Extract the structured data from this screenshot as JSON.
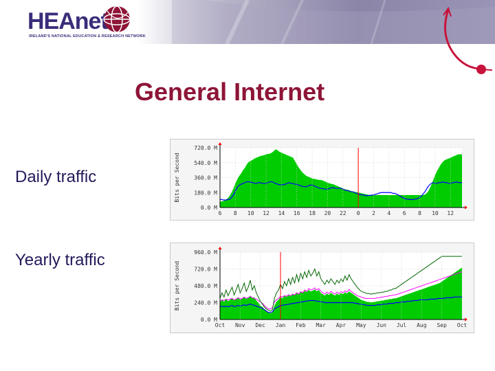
{
  "header": {
    "logo_text": "HEAnet",
    "logo_tagline": "IRELAND'S NATIONAL EDUCATION & RESEARCH NETWORK"
  },
  "slide": {
    "title": "General Internet",
    "labels": {
      "daily": "Daily traffic",
      "yearly": "Yearly traffic"
    }
  },
  "colors": {
    "title": "#8e1537",
    "label": "#221a5a",
    "in_area": "#00cc00",
    "out_line": "#0000ff",
    "marker": "#ff0000",
    "max_in": "#006600",
    "max_out": "#ff00ff"
  },
  "chart_data": [
    {
      "type": "area",
      "ylabel": "Bits per Second",
      "ytick_labels": [
        "720.0 M",
        "540.0 M",
        "360.0 M",
        "180.0 M",
        "0.0 M"
      ],
      "yticks": [
        720,
        540,
        360,
        180,
        0
      ],
      "ylim": [
        0,
        720
      ],
      "xtick_labels": [
        "6",
        "8",
        "10",
        "12",
        "14",
        "16",
        "18",
        "20",
        "22",
        "0",
        "2",
        "4",
        "6",
        "8",
        "10",
        "12"
      ],
      "xtick_index": [
        0,
        8,
        16,
        24,
        32,
        40,
        48,
        56,
        64,
        72,
        80,
        88,
        96,
        104,
        112,
        120
      ],
      "marker_index": 72,
      "grid": true,
      "series": [
        {
          "values": [
            70,
            75,
            80,
            95,
            110,
            140,
            180,
            230,
            290,
            340,
            380,
            410,
            450,
            480,
            520,
            550,
            560,
            575,
            590,
            600,
            610,
            620,
            625,
            630,
            640,
            645,
            650,
            660,
            680,
            700,
            690,
            670,
            660,
            650,
            640,
            630,
            620,
            610,
            600,
            560,
            520,
            480,
            450,
            420,
            400,
            380,
            370,
            360,
            350,
            345,
            340,
            335,
            330,
            330,
            320,
            310,
            300,
            290,
            285,
            280,
            270,
            260,
            250,
            240,
            230,
            220,
            215,
            210,
            200,
            195,
            190,
            185,
            180,
            175,
            170,
            165,
            160,
            155,
            150,
            150,
            150,
            150,
            150,
            150,
            150,
            150,
            150,
            150,
            150,
            150,
            150,
            150,
            150,
            150,
            150,
            150,
            150,
            150,
            150,
            150,
            150,
            150,
            150,
            150,
            150,
            150,
            150,
            160,
            180,
            220,
            270,
            330,
            390,
            440,
            480,
            520,
            550,
            570,
            580,
            590,
            600,
            610,
            620,
            630,
            640,
            640,
            640
          ]
        },
        {
          "values": [
            100,
            95,
            90,
            90,
            95,
            100,
            120,
            150,
            200,
            240,
            270,
            280,
            290,
            300,
            310,
            310,
            305,
            300,
            290,
            290,
            300,
            300,
            290,
            290,
            290,
            300,
            310,
            310,
            300,
            290,
            280,
            275,
            270,
            275,
            280,
            290,
            300,
            290,
            290,
            280,
            280,
            270,
            260,
            255,
            250,
            250,
            260,
            270,
            270,
            260,
            250,
            240,
            230,
            230,
            225,
            220,
            220,
            230,
            235,
            240,
            230,
            230,
            230,
            230,
            220,
            210,
            205,
            200,
            190,
            190,
            180,
            170,
            160,
            155,
            150,
            150,
            140,
            145,
            145,
            150,
            150,
            160,
            165,
            175,
            180,
            180,
            180,
            180,
            180,
            180,
            170,
            170,
            160,
            150,
            135,
            120,
            110,
            100,
            100,
            95,
            95,
            100,
            100,
            110,
            120,
            140,
            170,
            200,
            240,
            270,
            290,
            300,
            290,
            290,
            300,
            300,
            310,
            300,
            300,
            290,
            290,
            300,
            300,
            310,
            300,
            300,
            300
          ]
        }
      ]
    },
    {
      "type": "area",
      "ylabel": "Bits per Second",
      "ytick_labels": [
        "960.0 M",
        "720.0 M",
        "480.0 M",
        "240.0 M",
        "0.0 M"
      ],
      "yticks": [
        960,
        720,
        480,
        240,
        0
      ],
      "ylim": [
        0,
        960
      ],
      "xtick_labels": [
        "Oct",
        "Nov",
        "Dec",
        "Jan",
        "Feb",
        "Mar",
        "Apr",
        "May",
        "Jun",
        "Jul",
        "Aug",
        "Sep",
        "Oct"
      ],
      "xtick_index": [
        0,
        10,
        20,
        30,
        40,
        50,
        60,
        70,
        80,
        90,
        100,
        110,
        120
      ],
      "marker_index": 30,
      "grid": true,
      "series": [
        {
          "values": [
            240,
            290,
            250,
            300,
            260,
            280,
            310,
            270,
            290,
            320,
            280,
            300,
            330,
            290,
            310,
            340,
            300,
            320,
            270,
            240,
            200,
            180,
            150,
            120,
            100,
            90,
            100,
            200,
            250,
            280,
            320,
            300,
            340,
            320,
            360,
            330,
            370,
            350,
            390,
            360,
            400,
            380,
            410,
            390,
            420,
            400,
            410,
            430,
            400,
            420,
            380,
            360,
            340,
            370,
            350,
            380,
            360,
            340,
            370,
            350,
            380,
            360,
            390,
            370,
            400,
            380,
            360,
            340,
            320,
            300,
            280,
            270,
            260,
            250,
            250,
            240,
            250,
            250,
            260,
            260,
            270,
            270,
            280,
            280,
            290,
            290,
            300,
            300,
            310,
            320,
            330,
            340,
            350,
            360,
            370,
            380,
            390,
            400,
            410,
            420,
            430,
            440,
            450,
            460,
            470,
            480,
            490,
            500,
            510,
            520,
            540,
            560,
            580,
            600,
            620,
            640,
            660,
            680,
            700,
            720,
            740
          ]
        },
        {
          "values": [
            180,
            190,
            180,
            190,
            180,
            190,
            200,
            180,
            190,
            200,
            190,
            200,
            210,
            200,
            210,
            220,
            210,
            200,
            190,
            180,
            170,
            160,
            140,
            120,
            100,
            100,
            110,
            150,
            170,
            180,
            200,
            200,
            210,
            210,
            220,
            220,
            230,
            230,
            240,
            240,
            250,
            250,
            260,
            260,
            270,
            270,
            270,
            270,
            260,
            260,
            250,
            250,
            240,
            240,
            240,
            240,
            240,
            240,
            240,
            240,
            240,
            240,
            240,
            240,
            240,
            240,
            240,
            230,
            230,
            220,
            220,
            210,
            210,
            200,
            200,
            200,
            200,
            200,
            210,
            210,
            210,
            220,
            220,
            220,
            230,
            230,
            230,
            240,
            240,
            240,
            250,
            250,
            250,
            260,
            260,
            260,
            270,
            270,
            270,
            280,
            280,
            280,
            280,
            280,
            290,
            290,
            290,
            290,
            300,
            300,
            300,
            300,
            310,
            310,
            310,
            310,
            320,
            320,
            320,
            320,
            320
          ]
        },
        {
          "values": [
            300,
            380,
            320,
            420,
            340,
            400,
            460,
            350,
            420,
            500,
            380,
            440,
            520,
            400,
            460,
            560,
            420,
            480,
            380,
            320,
            260,
            220,
            180,
            150,
            130,
            120,
            140,
            300,
            380,
            420,
            500,
            440,
            540,
            480,
            580,
            500,
            600,
            520,
            640,
            540,
            660,
            580,
            680,
            600,
            700,
            620,
            660,
            720,
            620,
            680,
            580,
            540,
            500,
            560,
            520,
            580,
            540,
            500,
            560,
            520,
            580,
            540,
            620,
            560,
            640,
            580,
            540,
            500,
            460,
            430,
            400,
            390,
            380,
            370,
            370,
            360,
            370,
            370,
            380,
            380,
            390,
            390,
            400,
            400,
            420,
            420,
            440,
            440,
            460,
            480,
            500,
            520,
            540,
            560,
            580,
            600,
            620,
            640,
            660,
            680,
            700,
            720,
            740,
            760,
            780,
            800,
            820,
            840,
            860,
            880,
            900,
            900,
            900,
            900,
            900,
            900,
            900,
            900,
            900,
            900,
            900
          ]
        },
        {
          "values": [
            260,
            280,
            270,
            290,
            280,
            290,
            300,
            280,
            290,
            310,
            290,
            300,
            320,
            300,
            310,
            330,
            310,
            300,
            290,
            270,
            250,
            230,
            200,
            170,
            150,
            150,
            170,
            250,
            280,
            300,
            330,
            320,
            340,
            330,
            350,
            340,
            360,
            350,
            380,
            360,
            400,
            380,
            420,
            400,
            440,
            420,
            430,
            450,
            420,
            440,
            400,
            380,
            360,
            390,
            370,
            400,
            380,
            360,
            390,
            370,
            400,
            380,
            410,
            390,
            430,
            400,
            380,
            360,
            340,
            330,
            320,
            310,
            300,
            300,
            300,
            300,
            300,
            300,
            310,
            310,
            320,
            320,
            330,
            330,
            340,
            340,
            350,
            350,
            360,
            370,
            380,
            390,
            400,
            410,
            420,
            430,
            440,
            450,
            460,
            470,
            480,
            490,
            500,
            510,
            520,
            530,
            540,
            550,
            560,
            570,
            580,
            590,
            600,
            610,
            620,
            630,
            640,
            650,
            660,
            670,
            680
          ]
        }
      ]
    }
  ]
}
